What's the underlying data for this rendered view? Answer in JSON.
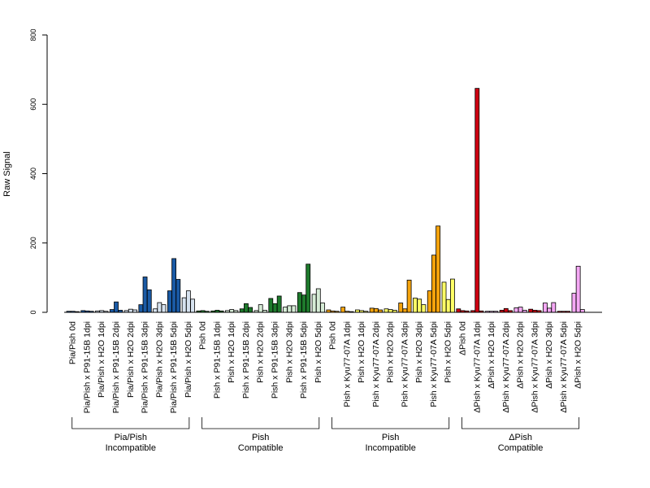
{
  "chart_data": {
    "type": "bar",
    "ylabel": "Raw Signal",
    "ylim": [
      0,
      800
    ],
    "yticks": [
      0,
      200,
      400,
      600,
      800
    ],
    "grid": false,
    "legend": "none",
    "categories": [
      "Pia/Pish 0d",
      "Pia/Pish x P91-15B 1dpi",
      "Pia/Pish x H2O 1dpi",
      "Pia/Pish x P91-15B 2dpi",
      "Pia/Pish x H2O 2dpi",
      "Pia/Pish x P91-15B 3dpi",
      "Pia/Pish x H2O 3dpi",
      "Pia/Pish x P91-15B 5dpi",
      "Pia/Pish x H2O 5dpi",
      "Pish 0d",
      "Pish x P91-15B 1dpi",
      "Pish x H2O 1dpi",
      "Pish x P91-15B 2dpi",
      "Pish x H2O 2dpi",
      "Pish x P91-15B 3dpi",
      "Pish x H2O 3dpi",
      "Pish x P91-15B 5dpi",
      "Pish x H2O 5dpi",
      "Pish 0d",
      "Pish x Kyu77-07A 1dpi",
      "Pish x H2O 1dpi",
      "Pish x Kyu77-07A 2dpi",
      "Pish x H2O 2dpi",
      "Pish x Kyu77-07A 3dpi",
      "Pish x H2O 3dpi",
      "Pish x Kyu77-07A 5dpi",
      "Pish x H2O 5dpi",
      "ΔPish 0d",
      "ΔPish x Kyu77-07A 1dpi",
      "ΔPish x H2O 1dpi",
      "ΔPish x Kyu77-07A 2dpi",
      "ΔPish x H2O 2dpi",
      "ΔPish x Kyu77-07A 3dpi",
      "ΔPish x H2O 3dpi",
      "ΔPish x Kyu77-07A 5dpi",
      "ΔPish x H2O 5dpi"
    ],
    "replicate_values": [
      [
        3,
        3,
        2
      ],
      [
        5,
        4,
        3
      ],
      [
        4,
        5,
        3
      ],
      [
        8,
        30,
        6
      ],
      [
        5,
        9,
        7
      ],
      [
        22,
        102,
        65
      ],
      [
        10,
        28,
        22
      ],
      [
        62,
        155,
        95
      ],
      [
        42,
        62,
        38
      ],
      [
        4,
        5,
        3
      ],
      [
        4,
        6,
        4
      ],
      [
        5,
        8,
        5
      ],
      [
        10,
        25,
        14
      ],
      [
        5,
        22,
        6
      ],
      [
        40,
        25,
        47
      ],
      [
        15,
        19,
        19
      ],
      [
        57,
        50,
        139
      ],
      [
        52,
        68,
        27
      ],
      [
        7,
        4,
        3
      ],
      [
        15,
        3,
        2
      ],
      [
        7,
        5,
        3
      ],
      [
        12,
        11,
        7
      ],
      [
        10,
        8,
        6
      ],
      [
        27,
        10,
        93
      ],
      [
        41,
        38,
        22
      ],
      [
        62,
        165,
        249
      ],
      [
        87,
        37,
        96
      ],
      [
        10,
        5,
        4
      ],
      [
        5,
        646,
        4
      ],
      [
        3,
        3,
        3
      ],
      [
        6,
        11,
        5
      ],
      [
        13,
        15,
        6
      ],
      [
        9,
        6,
        5
      ],
      [
        27,
        12,
        28
      ],
      [
        3,
        3,
        3
      ],
      [
        55,
        133,
        8
      ]
    ],
    "bar_colors": [
      "#1a5aa5",
      "#1a5aa5",
      "#d6e2ef",
      "#1a5aa5",
      "#d6e2ef",
      "#1a5aa5",
      "#d6e2ef",
      "#1a5aa5",
      "#d6e2ef",
      "#1e7a2c",
      "#1e7a2c",
      "#d6ecd6",
      "#1e7a2c",
      "#d6ecd6",
      "#1e7a2c",
      "#d6ecd6",
      "#1e7a2c",
      "#d6ecd6",
      "#f5a30c",
      "#f5a30c",
      "#ffff66",
      "#f5a30c",
      "#ffff66",
      "#f5a30c",
      "#ffff66",
      "#f5a30c",
      "#ffff66",
      "#cc0011",
      "#cc0011",
      "#f5a8f5",
      "#cc0011",
      "#f5a8f5",
      "#cc0011",
      "#f5a8f5",
      "#cc0011",
      "#f5a8f5"
    ],
    "groups": [
      {
        "line1": "Pia/Pish",
        "line2": "Incompatible",
        "start": 0,
        "end": 8
      },
      {
        "line1": "Pish",
        "line2": "Compatible",
        "start": 9,
        "end": 17
      },
      {
        "line1": "Pish",
        "line2": "Incompatible",
        "start": 18,
        "end": 26
      },
      {
        "line1": "ΔPish",
        "line2": "Compatible",
        "start": 27,
        "end": 35
      }
    ]
  }
}
